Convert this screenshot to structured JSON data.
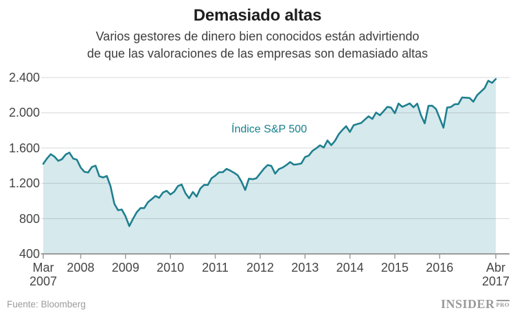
{
  "header": {
    "title": "Demasiado altas",
    "subtitle_lines": [
      "Varios gestores de dinero bien conocidos están advirtiendo",
      "de que las valoraciones de las empresas son demasiado altas"
    ]
  },
  "legend": {
    "series_label": "Índice S&P 500"
  },
  "footer": {
    "source": "Fuente: Bloomberg",
    "logo_main": "INSIDER",
    "logo_sub": "PRO"
  },
  "chart_data": {
    "type": "area",
    "title": "Demasiado altas",
    "series_name": "Índice S&P 500",
    "frequency": "monthly",
    "x_start": "Mar 2007",
    "x_end": "Abr 2017",
    "xlabel": "",
    "ylabel": "",
    "grid": true,
    "ylim": [
      400,
      2400
    ],
    "values": [
      1421,
      1482,
      1531,
      1503,
      1455,
      1474,
      1527,
      1549,
      1481,
      1468,
      1379,
      1331,
      1323,
      1386,
      1400,
      1280,
      1267,
      1283,
      1166,
      969,
      896,
      903,
      826,
      715,
      798,
      873,
      919,
      919,
      987,
      1021,
      1057,
      1036,
      1096,
      1115,
      1074,
      1104,
      1169,
      1187,
      1089,
      1031,
      1102,
      1049,
      1141,
      1183,
      1181,
      1258,
      1286,
      1327,
      1326,
      1364,
      1345,
      1321,
      1292,
      1219,
      1125,
      1253,
      1247,
      1258,
      1312,
      1366,
      1408,
      1398,
      1310,
      1362,
      1379,
      1407,
      1441,
      1412,
      1416,
      1426,
      1498,
      1515,
      1569,
      1598,
      1631,
      1606,
      1686,
      1633,
      1682,
      1757,
      1806,
      1848,
      1783,
      1859,
      1872,
      1884,
      1924,
      1960,
      1931,
      2003,
      1972,
      2018,
      2068,
      2059,
      1995,
      2105,
      2068,
      2086,
      2107,
      2063,
      2104,
      1972,
      1880,
      2079,
      2080,
      2044,
      1940,
      1830,
      2060,
      2065,
      2097,
      2099,
      2174,
      2171,
      2168,
      2126,
      2199,
      2239,
      2279,
      2364,
      2340,
      2384
    ],
    "yticks": [
      {
        "value": 400,
        "label": "400"
      },
      {
        "value": 800,
        "label": "800"
      },
      {
        "value": 1200,
        "label": "1.200"
      },
      {
        "value": 1600,
        "label": "1.600"
      },
      {
        "value": 2000,
        "label": "2.000"
      },
      {
        "value": 2400,
        "label": "2.400"
      }
    ],
    "xticks": [
      {
        "month_index": 0,
        "lines": [
          "Mar",
          "2007"
        ]
      },
      {
        "month_index": 10,
        "lines": [
          "2008"
        ]
      },
      {
        "month_index": 22,
        "lines": [
          "2009"
        ]
      },
      {
        "month_index": 34,
        "lines": [
          "2010"
        ]
      },
      {
        "month_index": 46,
        "lines": [
          "2011"
        ]
      },
      {
        "month_index": 58,
        "lines": [
          "2012"
        ]
      },
      {
        "month_index": 70,
        "lines": [
          "2013"
        ]
      },
      {
        "month_index": 82,
        "lines": [
          "2014"
        ]
      },
      {
        "month_index": 94,
        "lines": [
          "2015"
        ]
      },
      {
        "month_index": 106,
        "lines": [
          "2016"
        ]
      },
      {
        "month_index": 121,
        "lines": [
          "Abr",
          "2017"
        ]
      }
    ],
    "colors": {
      "line": "#1e7f8e",
      "fill": "#d6e9ec",
      "grid": "#e2e2e2",
      "axis": "#9a9a9a",
      "labels": "#454545",
      "legend_text": "#15808e"
    }
  }
}
